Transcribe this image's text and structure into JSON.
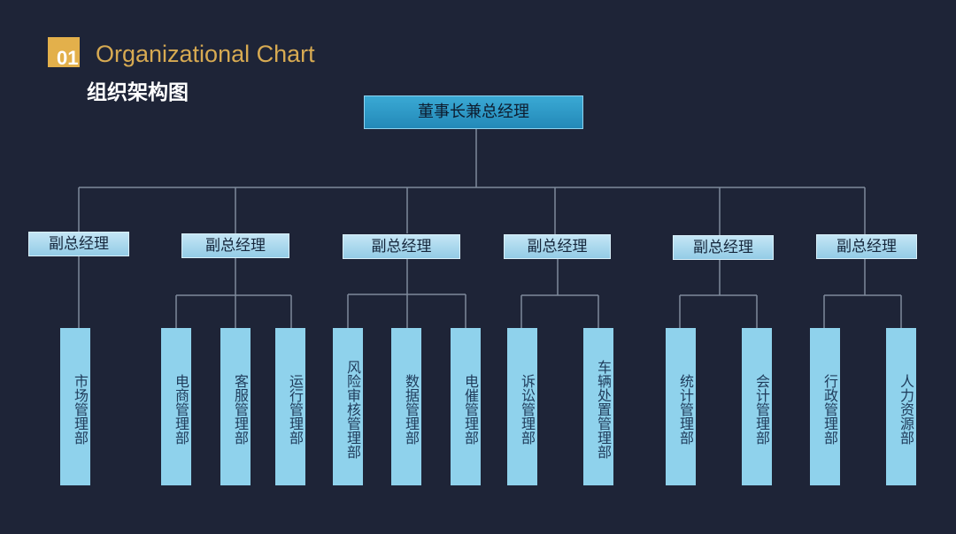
{
  "header": {
    "badge_number": "01",
    "title_en": "Organizational Chart",
    "title_cn": "组织架构图"
  },
  "org": {
    "root": "董事长兼总经理",
    "vps": [
      {
        "label": "副总经理",
        "departments": [
          "市场管理部"
        ]
      },
      {
        "label": "副总经理",
        "departments": [
          "电商管理部",
          "客服管理部",
          "运行管理部"
        ]
      },
      {
        "label": "副总经理",
        "departments": [
          "风险审核管理部",
          "数据管理部",
          "电催管理部"
        ]
      },
      {
        "label": "副总经理",
        "departments": [
          "诉讼管理部",
          "车辆处置管理部"
        ]
      },
      {
        "label": "副总经理",
        "departments": [
          "统计管理部",
          "会计管理部"
        ]
      },
      {
        "label": "副总经理",
        "departments": [
          "行政管理部",
          "人力资源部"
        ]
      }
    ]
  },
  "colors": {
    "background": "#1e2437",
    "accent": "#e3b04b",
    "root_box": "#2a96c4",
    "vp_box": "#acd9ee",
    "dept_box": "#8fd2ec",
    "connector": "#7f8a9c"
  }
}
